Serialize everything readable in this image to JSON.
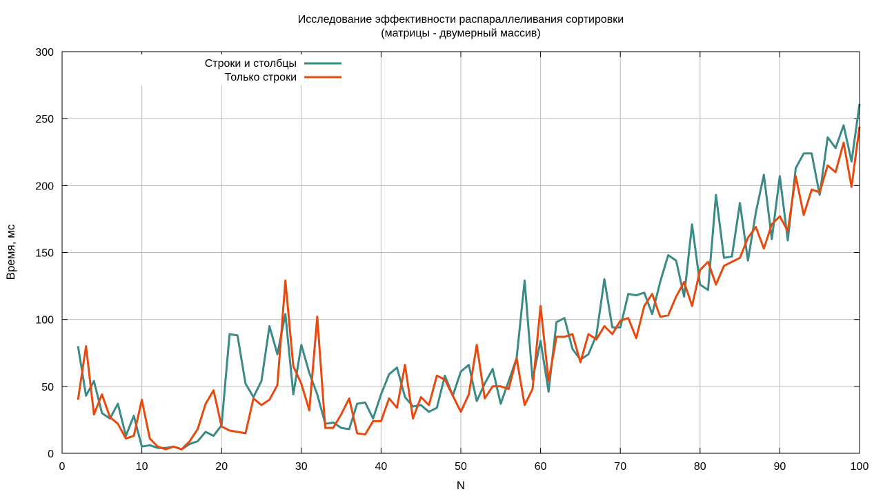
{
  "chart_data": {
    "type": "line",
    "title": "Исследование эффективности распараллеливания сортировки",
    "subtitle": "(матрицы - двумерный массив)",
    "xlabel": "N",
    "ylabel": "Время, мс",
    "xlim": [
      0,
      100
    ],
    "ylim": [
      0,
      300
    ],
    "xticks": [
      0,
      10,
      20,
      30,
      40,
      50,
      60,
      70,
      80,
      90,
      100
    ],
    "yticks": [
      0,
      50,
      100,
      150,
      200,
      250,
      300
    ],
    "grid": true,
    "legend_position": "top-left",
    "x": [
      2,
      3,
      4,
      5,
      6,
      7,
      8,
      9,
      10,
      11,
      12,
      13,
      14,
      15,
      16,
      17,
      18,
      19,
      20,
      21,
      22,
      23,
      24,
      25,
      26,
      27,
      28,
      29,
      30,
      31,
      32,
      33,
      34,
      35,
      36,
      37,
      38,
      39,
      40,
      41,
      42,
      43,
      44,
      45,
      46,
      47,
      48,
      49,
      50,
      51,
      52,
      53,
      54,
      55,
      56,
      57,
      58,
      59,
      60,
      61,
      62,
      63,
      64,
      65,
      66,
      67,
      68,
      69,
      70,
      71,
      72,
      73,
      74,
      75,
      76,
      77,
      78,
      79,
      80,
      81,
      82,
      83,
      84,
      85,
      86,
      87,
      88,
      89,
      90,
      91,
      92,
      93,
      94,
      95,
      96,
      97,
      98,
      99,
      100
    ],
    "series": [
      {
        "name": "Строки и столбцы",
        "color": "#3a8a86",
        "values": [
          80,
          43,
          54,
          30,
          26,
          37,
          13,
          28,
          5,
          6,
          4,
          4,
          5,
          3,
          7,
          9,
          16,
          13,
          21,
          89,
          88,
          52,
          42,
          54,
          95,
          74,
          104,
          44,
          81,
          60,
          44,
          22,
          23,
          19,
          18,
          37,
          38,
          26,
          44,
          59,
          64,
          42,
          35,
          36,
          31,
          34,
          58,
          43,
          61,
          66,
          39,
          52,
          63,
          37,
          54,
          71,
          129,
          55,
          84,
          46,
          98,
          101,
          78,
          70,
          74,
          88,
          130,
          94,
          94,
          119,
          118,
          120,
          104,
          128,
          148,
          144,
          117,
          171,
          126,
          122,
          193,
          146,
          147,
          187,
          144,
          180,
          208,
          160,
          207,
          159,
          213,
          224,
          224,
          193,
          236,
          228,
          245,
          218,
          261
        ]
      },
      {
        "name": "Только строки",
        "color": "#e8490f",
        "values": [
          40,
          80,
          29,
          44,
          27,
          22,
          11,
          13,
          40,
          11,
          5,
          3,
          5,
          3,
          9,
          18,
          37,
          47,
          20,
          17,
          16,
          15,
          41,
          36,
          40,
          51,
          129,
          65,
          52,
          32,
          102,
          19,
          19,
          29,
          41,
          15,
          14,
          24,
          24,
          41,
          34,
          66,
          26,
          42,
          36,
          58,
          55,
          43,
          31,
          44,
          81,
          41,
          50,
          50,
          48,
          71,
          36,
          48,
          110,
          54,
          87,
          87,
          89,
          68,
          89,
          85,
          95,
          89,
          99,
          101,
          86,
          110,
          119,
          102,
          103,
          117,
          128,
          110,
          137,
          143,
          126,
          140,
          143,
          146,
          161,
          169,
          153,
          171,
          177,
          166,
          207,
          178,
          197,
          195,
          215,
          210,
          232,
          199,
          244
        ]
      }
    ]
  }
}
